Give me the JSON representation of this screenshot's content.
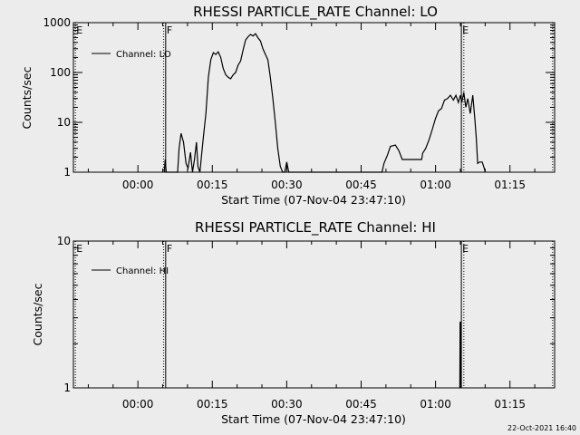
{
  "chart_data": [
    {
      "type": "line",
      "title": "RHESSI PARTICLE_RATE Channel: LO",
      "xlabel": "Start Time (07-Nov-04 23:47:10)",
      "ylabel": "Counts/sec",
      "y_scale": "log",
      "ylim": [
        1,
        1000
      ],
      "y_ticks": [
        1,
        10,
        100,
        1000
      ],
      "y_tick_labels": [
        "1",
        "10",
        "100",
        "1000"
      ],
      "xlim": [
        -13,
        84
      ],
      "x_units": "minutes after 00:00",
      "x_ticks": [
        0,
        15,
        30,
        45,
        60,
        75
      ],
      "x_tick_labels": [
        "00:00",
        "00:15",
        "00:30",
        "00:45",
        "01:00",
        "01:15"
      ],
      "grid": false,
      "legend_position": "top-left",
      "markers": [
        {
          "label": "E",
          "x": -12.6,
          "style": "dotted"
        },
        {
          "label": "F",
          "x": 5.6,
          "style": "solid"
        },
        {
          "label": "",
          "x": 5.2,
          "style": "dotted"
        },
        {
          "label": "E",
          "x": 65.2,
          "style": "solid"
        },
        {
          "label": "",
          "x": 65.7,
          "style": "dotted"
        },
        {
          "label": "",
          "x": 83.6,
          "style": "dotted"
        }
      ],
      "series": [
        {
          "name": "Channel: LO",
          "points": [
            [
              5.3,
              1
            ],
            [
              5.5,
              1.8
            ],
            [
              5.7,
              1
            ],
            [
              8,
              1
            ],
            [
              8.3,
              3
            ],
            [
              8.7,
              6
            ],
            [
              9.2,
              4
            ],
            [
              9.7,
              1.5
            ],
            [
              10.1,
              1.2
            ],
            [
              10.6,
              2.5
            ],
            [
              11,
              1
            ],
            [
              11.4,
              1.8
            ],
            [
              11.8,
              4
            ],
            [
              12.1,
              1.3
            ],
            [
              12.5,
              1
            ],
            [
              12.8,
              2
            ],
            [
              13.2,
              5
            ],
            [
              13.7,
              15
            ],
            [
              14.2,
              80
            ],
            [
              14.7,
              180
            ],
            [
              15.2,
              250
            ],
            [
              15.7,
              230
            ],
            [
              16.2,
              260
            ],
            [
              16.7,
              200
            ],
            [
              17.2,
              120
            ],
            [
              17.7,
              90
            ],
            [
              18.2,
              80
            ],
            [
              18.7,
              75
            ],
            [
              19.2,
              90
            ],
            [
              19.7,
              100
            ],
            [
              20.2,
              140
            ],
            [
              20.7,
              170
            ],
            [
              21.2,
              280
            ],
            [
              21.7,
              450
            ],
            [
              22.2,
              520
            ],
            [
              22.7,
              580
            ],
            [
              23.2,
              540
            ],
            [
              23.7,
              600
            ],
            [
              24.2,
              500
            ],
            [
              24.7,
              430
            ],
            [
              25.2,
              300
            ],
            [
              25.7,
              230
            ],
            [
              26.2,
              180
            ],
            [
              26.7,
              80
            ],
            [
              27.2,
              30
            ],
            [
              27.7,
              10
            ],
            [
              28.2,
              3
            ],
            [
              28.7,
              1.3
            ],
            [
              29.2,
              1
            ],
            [
              29.6,
              1
            ],
            [
              30,
              1.6
            ],
            [
              30.4,
              1
            ],
            [
              49.2,
              1
            ],
            [
              49.6,
              1.5
            ],
            [
              50.3,
              2.2
            ],
            [
              50.9,
              3.3
            ],
            [
              51.9,
              3.5
            ],
            [
              52.6,
              2.7
            ],
            [
              53.3,
              1.8
            ],
            [
              54,
              1.8
            ],
            [
              55,
              1.8
            ],
            [
              56,
              1.8
            ],
            [
              57.2,
              1.8
            ],
            [
              57.4,
              2.4
            ],
            [
              58,
              3
            ],
            [
              58.7,
              4.5
            ],
            [
              59.3,
              7
            ],
            [
              60,
              12
            ],
            [
              60.6,
              17
            ],
            [
              61.2,
              19
            ],
            [
              61.8,
              28
            ],
            [
              62.4,
              30
            ],
            [
              63,
              35
            ],
            [
              63.6,
              28
            ],
            [
              64.1,
              35
            ],
            [
              64.6,
              25
            ],
            [
              65,
              35
            ],
            [
              65.3,
              25
            ],
            [
              65.7,
              40
            ],
            [
              66.1,
              20
            ],
            [
              66.5,
              30
            ],
            [
              67,
              15
            ],
            [
              67.5,
              35
            ],
            [
              67.9,
              12
            ],
            [
              68.2,
              5
            ],
            [
              68.5,
              1.5
            ],
            [
              68.9,
              1.6
            ],
            [
              69.4,
              1.6
            ],
            [
              69.8,
              1.2
            ],
            [
              70,
              1
            ]
          ]
        }
      ]
    },
    {
      "type": "line",
      "title": "RHESSI PARTICLE_RATE Channel: HI",
      "xlabel": "Start Time (07-Nov-04 23:47:10)",
      "ylabel": "Counts/sec",
      "y_scale": "log",
      "ylim": [
        1,
        10
      ],
      "y_ticks": [
        1,
        10
      ],
      "y_tick_labels": [
        "1",
        "10"
      ],
      "xlim": [
        -13,
        84
      ],
      "x_units": "minutes after 00:00",
      "x_ticks": [
        0,
        15,
        30,
        45,
        60,
        75
      ],
      "x_tick_labels": [
        "00:00",
        "00:15",
        "00:30",
        "00:45",
        "01:00",
        "01:15"
      ],
      "grid": false,
      "legend_position": "top-left",
      "markers": [
        {
          "label": "E",
          "x": -12.6,
          "style": "dotted"
        },
        {
          "label": "F",
          "x": 5.6,
          "style": "solid"
        },
        {
          "label": "",
          "x": 5.2,
          "style": "dotted"
        },
        {
          "label": "E",
          "x": 65.2,
          "style": "solid"
        },
        {
          "label": "",
          "x": 65.7,
          "style": "dotted"
        },
        {
          "label": "",
          "x": 83.6,
          "style": "dotted"
        }
      ],
      "series": [
        {
          "name": "Channel: HI",
          "points": [
            [
              64.9,
              1
            ],
            [
              64.95,
              2.8
            ],
            [
              65.05,
              2.8
            ],
            [
              65.1,
              1
            ]
          ]
        }
      ]
    }
  ],
  "footer": {
    "timestamp": "22-Oct-2021 16:40"
  }
}
